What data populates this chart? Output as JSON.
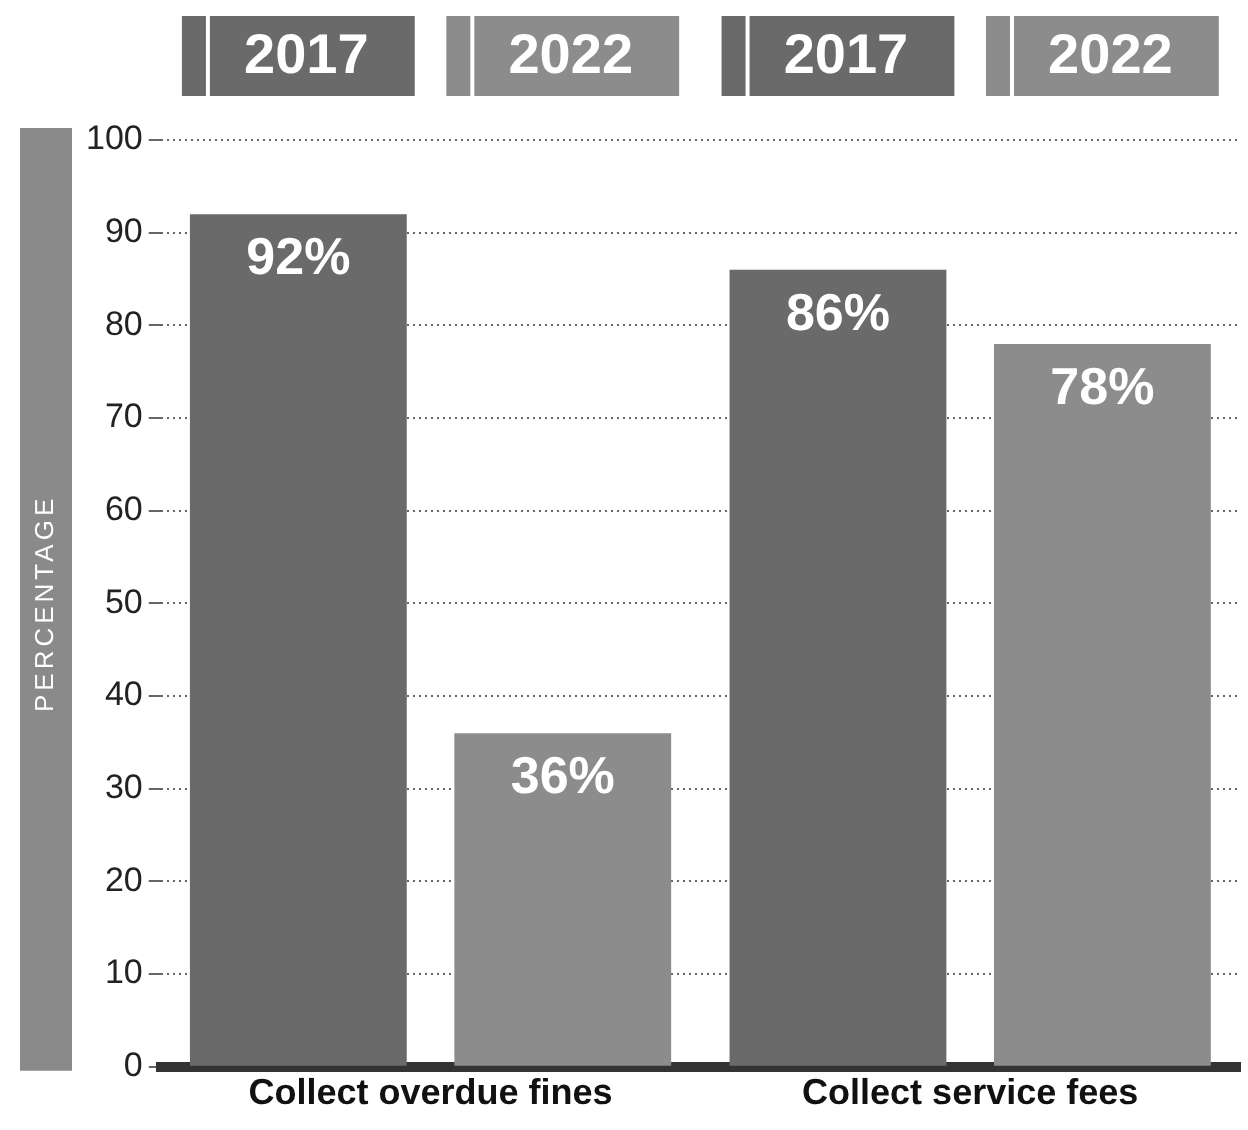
{
  "chart_data": {
    "type": "bar",
    "ylabel": "PERCENTAGE",
    "categories": [
      "Collect overdue fines",
      "Collect service fees"
    ],
    "series": [
      {
        "name": "2017",
        "color": "#6a6a6a",
        "values": [
          92,
          86
        ],
        "value_labels": [
          "92%",
          "86%"
        ]
      },
      {
        "name": "2022",
        "color": "#8c8c8c",
        "values": [
          36,
          78
        ],
        "value_labels": [
          "36%",
          "78%"
        ]
      }
    ],
    "ylim": [
      0,
      100
    ],
    "yticks": [
      0,
      10,
      20,
      30,
      40,
      50,
      60,
      70,
      80,
      90,
      100
    ],
    "grid": "y",
    "legend": "top"
  }
}
